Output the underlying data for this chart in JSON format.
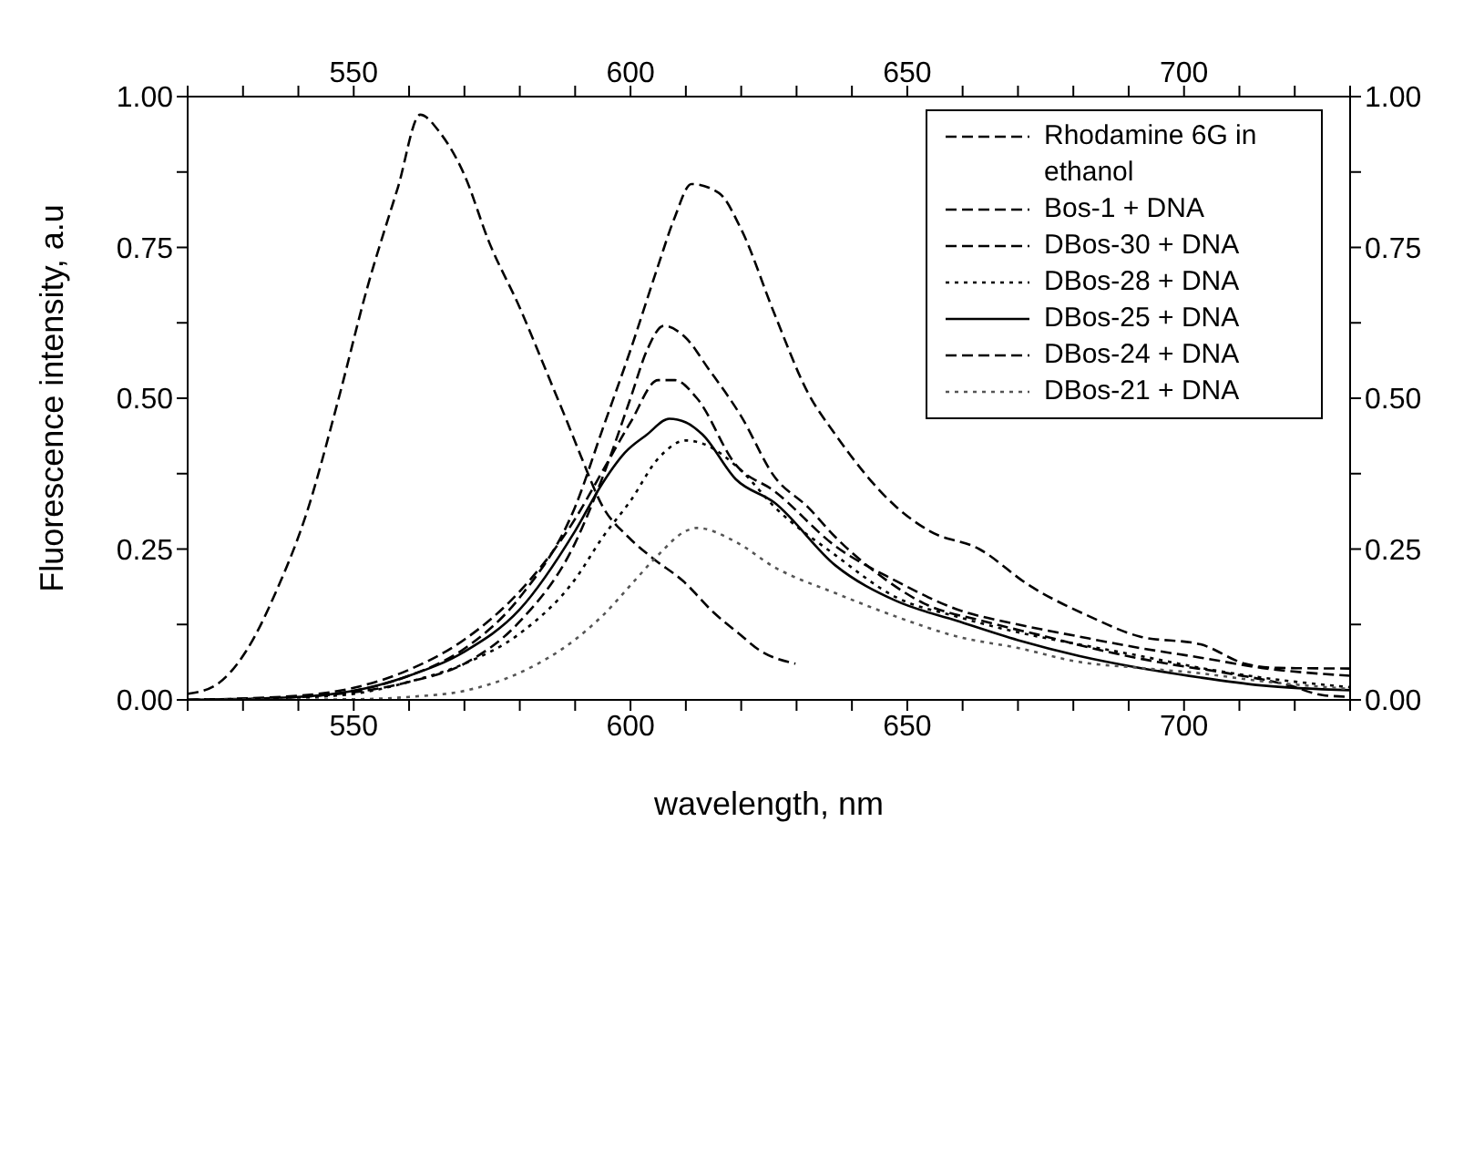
{
  "chart_data": {
    "type": "line",
    "xlabel": "wavelength, nm",
    "ylabel": "Fluorescence intensity, a.u",
    "xlim": [
      520,
      730
    ],
    "xticks": [
      {
        "value": 520,
        "label": null
      },
      {
        "value": 530,
        "label": null
      },
      {
        "value": 540,
        "label": null
      },
      550,
      {
        "value": 560,
        "label": null
      },
      {
        "value": 570,
        "label": null
      },
      {
        "value": 580,
        "label": null
      },
      {
        "value": 590,
        "label": null
      },
      600,
      {
        "value": 610,
        "label": null
      },
      {
        "value": 620,
        "label": null
      },
      {
        "value": 630,
        "label": null
      },
      {
        "value": 640,
        "label": null
      },
      650,
      {
        "value": 660,
        "label": null
      },
      {
        "value": 670,
        "label": null
      },
      {
        "value": 680,
        "label": null
      },
      {
        "value": 690,
        "label": null
      },
      700,
      {
        "value": 710,
        "label": null
      },
      {
        "value": 720,
        "label": null
      },
      {
        "value": 730,
        "label": null
      }
    ],
    "x2lim": [
      520,
      730
    ],
    "x2ticks": [
      {
        "value": 520,
        "label": null
      },
      {
        "value": 530,
        "label": null
      },
      {
        "value": 540,
        "label": null
      },
      550,
      {
        "value": 560,
        "label": null
      },
      {
        "value": 570,
        "label": null
      },
      {
        "value": 580,
        "label": null
      },
      {
        "value": 590,
        "label": null
      },
      600,
      {
        "value": 610,
        "label": null
      },
      {
        "value": 620,
        "label": null
      },
      {
        "value": 630,
        "label": null
      },
      {
        "value": 640,
        "label": null
      },
      650,
      {
        "value": 660,
        "label": null
      },
      {
        "value": 670,
        "label": null
      },
      {
        "value": 680,
        "label": null
      },
      {
        "value": 690,
        "label": null
      },
      700,
      {
        "value": 710,
        "label": null
      },
      {
        "value": 720,
        "label": null
      },
      {
        "value": 730,
        "label": null
      }
    ],
    "ylim": [
      0,
      1
    ],
    "yticks": [
      {
        "value": 0,
        "label": "0.00"
      },
      {
        "value": 0.125,
        "label": null
      },
      {
        "value": 0.25,
        "label": "0.25"
      },
      {
        "value": 0.375,
        "label": null
      },
      {
        "value": 0.5,
        "label": "0.50"
      },
      {
        "value": 0.625,
        "label": null
      },
      {
        "value": 0.75,
        "label": "0.75"
      },
      {
        "value": 0.875,
        "label": null
      },
      {
        "value": 1,
        "label": "1.00"
      }
    ],
    "y2lim": [
      0,
      1
    ],
    "y2ticks": [
      {
        "value": 0,
        "label": "0.00"
      },
      {
        "value": 0.125,
        "label": null
      },
      {
        "value": 0.25,
        "label": "0.25"
      },
      {
        "value": 0.375,
        "label": null
      },
      {
        "value": 0.5,
        "label": "0.50"
      },
      {
        "value": 0.625,
        "label": null
      },
      {
        "value": 0.75,
        "label": "0.75"
      },
      {
        "value": 0.875,
        "label": null
      },
      {
        "value": 1,
        "label": "1.00"
      }
    ],
    "grid": false,
    "legend": "top right",
    "marker": "none",
    "series": [
      {
        "name": "Rhodamine 6G in ethanol",
        "color": "#000000",
        "line_style": "dashed",
        "x": [
          520,
          525,
          530.5,
          536,
          541.5,
          547,
          552.5,
          558,
          562,
          565.6,
          570,
          574.4,
          580,
          585,
          588.6,
          591,
          595,
          599.6,
          604,
          609.5,
          615,
          619.3,
          623.7,
          629.8
        ],
        "values": [
          0.01,
          0.024,
          0.08,
          0.18,
          0.31,
          0.49,
          0.685,
          0.85,
          0.97,
          0.94,
          0.87,
          0.76,
          0.65,
          0.54,
          0.46,
          0.405,
          0.32,
          0.27,
          0.235,
          0.197,
          0.145,
          0.112,
          0.08,
          0.06
        ]
      },
      {
        "name": "Bos-1 + DNA",
        "color": "#000000",
        "line_style": "dashed",
        "x": [
          520,
          540,
          550,
          560,
          570,
          580,
          590,
          595,
          600,
          605,
          608,
          611,
          616,
          620,
          626,
          632,
          637,
          648,
          654,
          663,
          672,
          683,
          692,
          703,
          711,
          717,
          730
        ],
        "values": [
          0,
          0.005,
          0.015,
          0.04,
          0.085,
          0.17,
          0.32,
          0.45,
          0.58,
          0.72,
          0.8,
          0.855,
          0.84,
          0.78,
          0.64,
          0.51,
          0.44,
          0.32,
          0.28,
          0.25,
          0.19,
          0.138,
          0.105,
          0.092,
          0.06,
          0.053,
          0.052
        ]
      },
      {
        "name": "DBos-30 + DNA",
        "color": "#000000",
        "line_style": "dashed",
        "x": [
          520,
          540,
          560,
          570,
          580,
          590,
          595,
          600,
          603,
          606,
          610,
          614,
          620,
          626,
          632,
          637,
          646,
          653,
          664,
          675,
          686,
          697,
          708,
          719,
          725,
          730
        ],
        "values": [
          0,
          0.005,
          0.03,
          0.06,
          0.13,
          0.26,
          0.37,
          0.5,
          0.58,
          0.62,
          0.6,
          0.55,
          0.47,
          0.37,
          0.32,
          0.27,
          0.2,
          0.16,
          0.13,
          0.105,
          0.08,
          0.06,
          0.044,
          0.024,
          0.008,
          0.005
        ]
      },
      {
        "name": "DBos-28 + DNA",
        "color": "#000000",
        "line_style": "dotted",
        "x": [
          520,
          540,
          550,
          560,
          570,
          580,
          590,
          595,
          600,
          605,
          610,
          613,
          620,
          626,
          637,
          648,
          659,
          670,
          681,
          692,
          703,
          714,
          730
        ],
        "values": [
          0,
          0.004,
          0.01,
          0.03,
          0.06,
          0.11,
          0.2,
          0.27,
          0.33,
          0.4,
          0.43,
          0.425,
          0.38,
          0.32,
          0.24,
          0.17,
          0.138,
          0.112,
          0.092,
          0.073,
          0.053,
          0.037,
          0.021
        ]
      },
      {
        "name": "DBos-25 + DNA",
        "color": "#000000",
        "line_style": "solid",
        "x": [
          520,
          540,
          550,
          560,
          570,
          580,
          590,
          595,
          599,
          603,
          607,
          610,
          613,
          619,
          626,
          637,
          648,
          659,
          670,
          681,
          692,
          703,
          714,
          730
        ],
        "values": [
          0,
          0.005,
          0.015,
          0.04,
          0.08,
          0.15,
          0.28,
          0.36,
          0.41,
          0.44,
          0.466,
          0.46,
          0.44,
          0.366,
          0.327,
          0.223,
          0.164,
          0.131,
          0.099,
          0.073,
          0.053,
          0.037,
          0.024,
          0.016
        ]
      },
      {
        "name": "DBos-24 + DNA",
        "color": "#000000",
        "line_style": "dashed",
        "x": [
          520,
          540,
          550,
          560,
          570,
          580,
          590,
          595,
          600,
          605,
          608,
          612,
          619,
          626,
          637,
          648,
          659,
          670,
          681,
          692,
          703,
          714,
          730
        ],
        "values": [
          0,
          0.007,
          0.02,
          0.05,
          0.1,
          0.18,
          0.3,
          0.38,
          0.46,
          0.53,
          0.53,
          0.5,
          0.39,
          0.346,
          0.255,
          0.197,
          0.15,
          0.125,
          0.105,
          0.086,
          0.07,
          0.053,
          0.04
        ]
      },
      {
        "name": "DBos-21 + DNA",
        "color": "#555555",
        "line_style": "dotted",
        "x": [
          520,
          550,
          560,
          570,
          580,
          590,
          595,
          600,
          605,
          610,
          612,
          619,
          626,
          637,
          648,
          659,
          670,
          681,
          692,
          703,
          714,
          730
        ],
        "values": [
          0,
          0.001,
          0.005,
          0.015,
          0.045,
          0.1,
          0.14,
          0.19,
          0.24,
          0.28,
          0.285,
          0.262,
          0.22,
          0.177,
          0.138,
          0.105,
          0.086,
          0.063,
          0.053,
          0.044,
          0.031,
          0.018
        ]
      }
    ]
  }
}
